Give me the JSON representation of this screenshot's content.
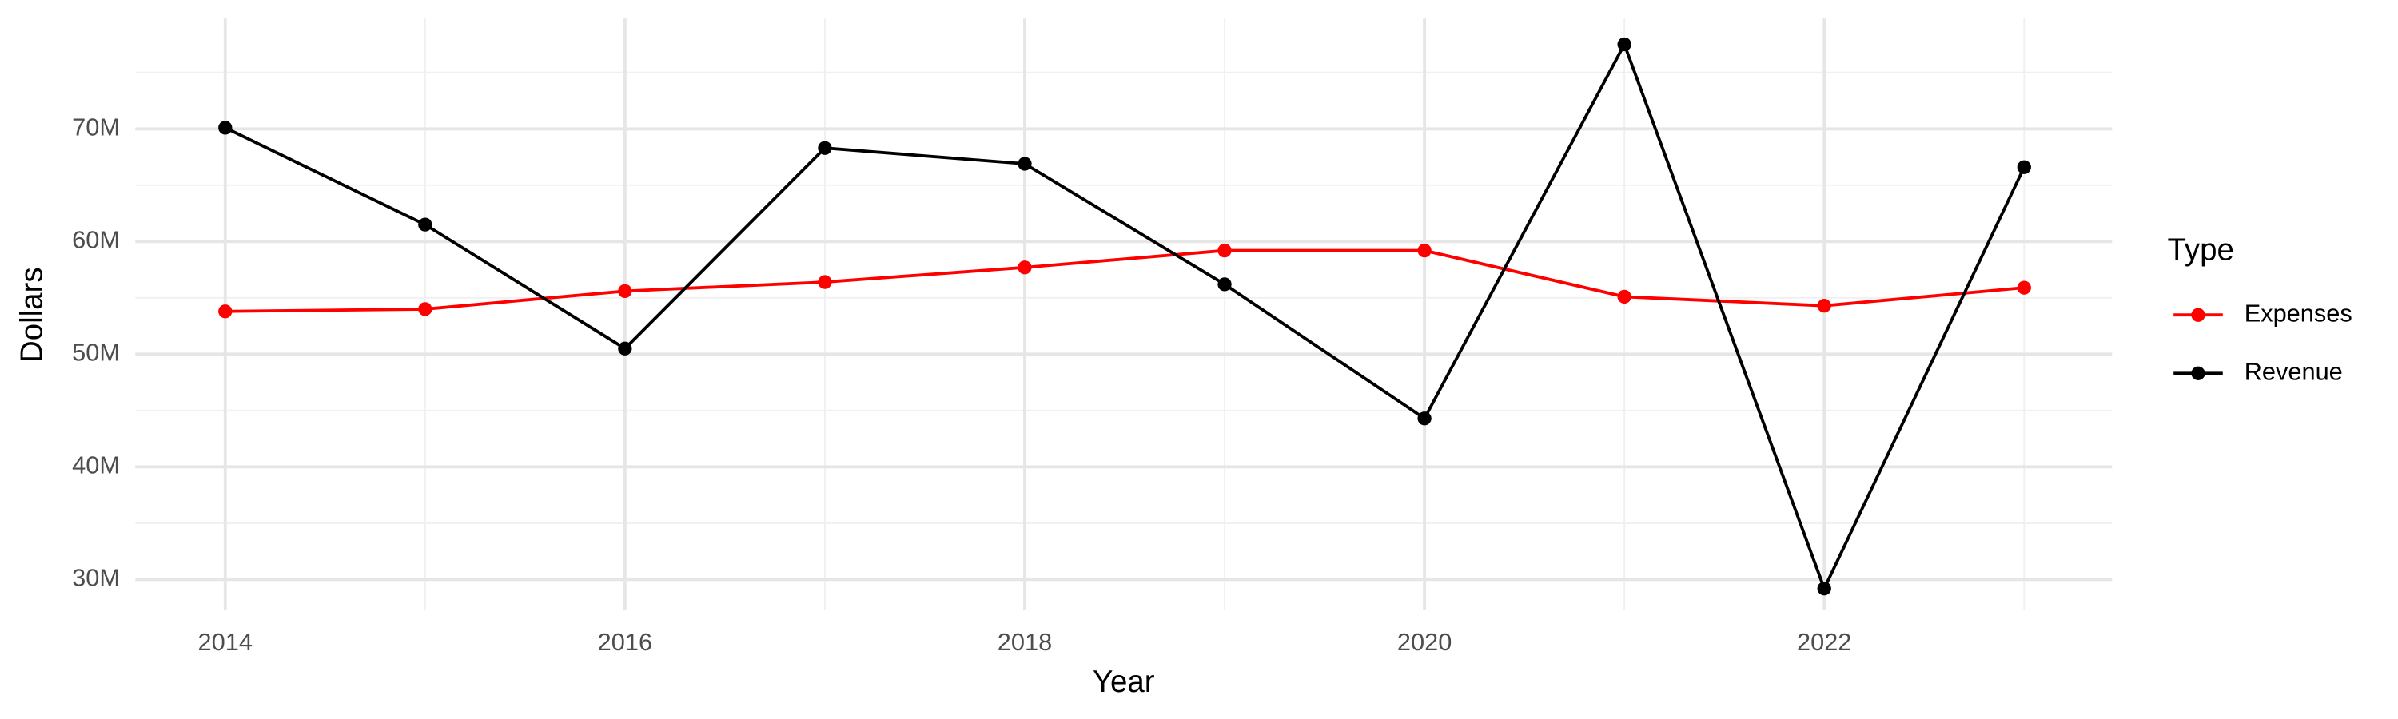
{
  "chart_data": {
    "type": "line",
    "x_label": "Year",
    "y_label": "Dollars",
    "x": [
      2014,
      2015,
      2016,
      2017,
      2018,
      2019,
      2020,
      2021,
      2022,
      2023
    ],
    "series": [
      {
        "name": "Expenses",
        "color": "#ff0000",
        "values": [
          53800000,
          54000000,
          55600000,
          56400000,
          57700000,
          59200000,
          59200000,
          55100000,
          54300000,
          55900000
        ]
      },
      {
        "name": "Revenue",
        "color": "#000000",
        "values": [
          70100000,
          61500000,
          50500000,
          68300000,
          66900000,
          56200000,
          44300000,
          77500000,
          29200000,
          66600000
        ]
      }
    ],
    "xlim": [
      2013.55,
      2023.44
    ],
    "ylim": [
      27300000,
      79800000
    ],
    "xticks": [
      2014,
      2016,
      2018,
      2020,
      2022
    ],
    "yticks": [
      {
        "value": 30000000,
        "label": "30M"
      },
      {
        "value": 40000000,
        "label": "40M"
      },
      {
        "value": 50000000,
        "label": "50M"
      },
      {
        "value": 60000000,
        "label": "60M"
      },
      {
        "value": 70000000,
        "label": "70M"
      }
    ],
    "legend_title": "Type",
    "grid": true
  }
}
